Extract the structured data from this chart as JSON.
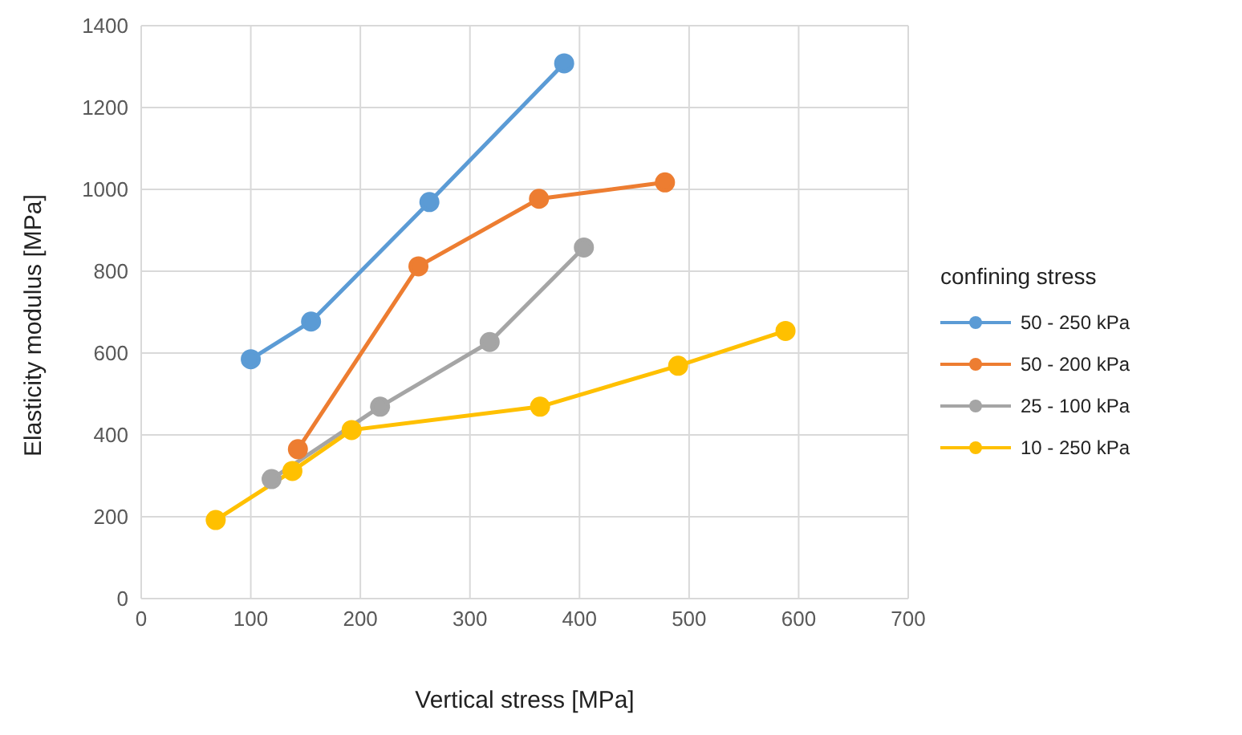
{
  "chart_data": {
    "type": "line",
    "xlabel": "Vertical stress [MPa]",
    "ylabel": "Elasticity modulus [MPa]",
    "legend_title": "confining stress",
    "legend": "right",
    "grid": true,
    "marker": "circle",
    "line_style": "solid",
    "xlim": [
      0,
      700
    ],
    "xticks": [
      0,
      100,
      200,
      300,
      400,
      500,
      600,
      700
    ],
    "ylim": [
      0,
      1400
    ],
    "yticks": [
      0,
      200,
      400,
      600,
      800,
      1000,
      1200,
      1400
    ],
    "series": [
      {
        "name": "50 - 250 kPa",
        "color": "#5b9bd5",
        "x": [
          100,
          155,
          263,
          386
        ],
        "values": [
          585,
          677,
          969,
          1308
        ]
      },
      {
        "name": "50 - 200 kPa",
        "color": "#ed7d31",
        "x": [
          143,
          253,
          363,
          478
        ],
        "values": [
          365,
          812,
          977,
          1017
        ]
      },
      {
        "name": "25 - 100 kPa",
        "color": "#a5a5a5",
        "x": [
          119,
          218,
          318,
          404
        ],
        "values": [
          292,
          469,
          627,
          858
        ]
      },
      {
        "name": "10 - 250 kPa",
        "color": "#ffc000",
        "x": [
          68,
          138,
          192,
          364,
          490,
          588
        ],
        "values": [
          192,
          312,
          412,
          469,
          569,
          654
        ]
      }
    ]
  }
}
